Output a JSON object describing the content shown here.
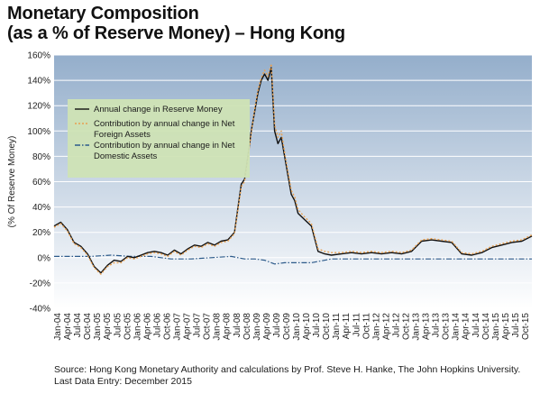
{
  "title_lines": [
    "Monetary Composition",
    "(as a % of Reserve Money) – Hong Kong"
  ],
  "source_lines": [
    "Source: Hong Kong Monetary Authority and calculations by Prof. Steve H. Hanke, The John Hopkins University.",
    "Last Data Entry: December 2015"
  ],
  "colors": {
    "plot_top": "#94aecb",
    "plot_bottom": "#ffffff",
    "grid": "#ffffff",
    "legend_bg": "#cfe3b5",
    "series_1": "#111111",
    "series_2": "#e8a050",
    "series_3": "#2c5a8a"
  },
  "chart_data": {
    "type": "line",
    "title": "Monetary Composition (as a % of Reserve Money) – Hong Kong",
    "xlabel": "",
    "ylabel": "(% Of Reserve Money)",
    "ylim": [
      -40,
      160
    ],
    "yticks": [
      -40,
      -20,
      0,
      20,
      40,
      60,
      80,
      100,
      120,
      140,
      160
    ],
    "ytick_labels": [
      "-40%",
      "-20%",
      "0%",
      "20%",
      "40%",
      "60%",
      "80%",
      "100%",
      "120%",
      "140%",
      "160%"
    ],
    "x_range": [
      "2004-01",
      "2015-12"
    ],
    "grid": true,
    "legend_position": "top-left",
    "categories": [
      "Jan-04",
      "Apr-04",
      "Jul-04",
      "Oct-04",
      "Jan-05",
      "Apr-05",
      "Jul-05",
      "Oct-05",
      "Jan-06",
      "Apr-06",
      "Jul-06",
      "Oct-06",
      "Jan-07",
      "Apr-07",
      "Jul-07",
      "Oct-07",
      "Jan-08",
      "Apr-08",
      "Jul-08",
      "Oct-08",
      "Jan-09",
      "Apr-09",
      "Jul-09",
      "Oct-09",
      "Jan-10",
      "Apr-10",
      "Jul-10",
      "Oct-10",
      "Jan-11",
      "Apr-11",
      "Jul-11",
      "Oct-11",
      "Jan-12",
      "Apr-12",
      "Jul-12",
      "Oct-12",
      "Jan-13",
      "Apr-13",
      "Jul-13",
      "Oct-13",
      "Jan-14",
      "Apr-14",
      "Jul-14",
      "Oct-14",
      "Jan-15",
      "Apr-15",
      "Jul-15",
      "Oct-15"
    ],
    "series": [
      {
        "name": "Annual change in Reserve Money",
        "style": "solid",
        "x": [
          "2004-01",
          "2004-03",
          "2004-05",
          "2004-07",
          "2004-09",
          "2004-11",
          "2005-01",
          "2005-03",
          "2005-05",
          "2005-07",
          "2005-09",
          "2005-11",
          "2006-01",
          "2006-03",
          "2006-05",
          "2006-07",
          "2006-09",
          "2006-11",
          "2007-01",
          "2007-03",
          "2007-05",
          "2007-07",
          "2007-09",
          "2007-11",
          "2008-01",
          "2008-03",
          "2008-05",
          "2008-07",
          "2008-09",
          "2008-10",
          "2008-11",
          "2008-12",
          "2009-01",
          "2009-02",
          "2009-03",
          "2009-04",
          "2009-05",
          "2009-06",
          "2009-07",
          "2009-08",
          "2009-09",
          "2009-10",
          "2009-11",
          "2009-12",
          "2010-01",
          "2010-02",
          "2010-04",
          "2010-06",
          "2010-08",
          "2010-10",
          "2010-12",
          "2011-03",
          "2011-06",
          "2011-09",
          "2011-12",
          "2012-03",
          "2012-06",
          "2012-09",
          "2012-12",
          "2013-03",
          "2013-06",
          "2013-09",
          "2013-12",
          "2014-03",
          "2014-06",
          "2014-09",
          "2014-12",
          "2015-03",
          "2015-06",
          "2015-09",
          "2015-12"
        ],
        "y": [
          25,
          28,
          22,
          12,
          9,
          3,
          -7,
          -12,
          -6,
          -2,
          -3,
          1,
          0,
          2,
          4,
          5,
          4,
          2,
          6,
          3,
          7,
          10,
          9,
          12,
          10,
          13,
          14,
          20,
          58,
          62,
          80,
          100,
          115,
          130,
          140,
          145,
          140,
          150,
          100,
          90,
          95,
          80,
          65,
          50,
          45,
          35,
          30,
          25,
          5,
          3,
          2,
          3,
          4,
          3,
          4,
          3,
          4,
          3,
          5,
          13,
          14,
          13,
          12,
          3,
          2,
          4,
          8,
          10,
          12,
          13,
          17
        ]
      },
      {
        "name": "Contribution by annual change in Net Foreign Assets",
        "style": "dotted",
        "x": [
          "2004-01",
          "2004-03",
          "2004-05",
          "2004-07",
          "2004-09",
          "2004-11",
          "2005-01",
          "2005-03",
          "2005-05",
          "2005-07",
          "2005-09",
          "2005-11",
          "2006-01",
          "2006-03",
          "2006-05",
          "2006-07",
          "2006-09",
          "2006-11",
          "2007-01",
          "2007-03",
          "2007-05",
          "2007-07",
          "2007-09",
          "2007-11",
          "2008-01",
          "2008-03",
          "2008-05",
          "2008-07",
          "2008-09",
          "2008-10",
          "2008-11",
          "2008-12",
          "2009-01",
          "2009-02",
          "2009-03",
          "2009-04",
          "2009-05",
          "2009-06",
          "2009-07",
          "2009-08",
          "2009-09",
          "2009-10",
          "2009-11",
          "2009-12",
          "2010-01",
          "2010-02",
          "2010-04",
          "2010-06",
          "2010-08",
          "2010-10",
          "2010-12",
          "2011-03",
          "2011-06",
          "2011-09",
          "2011-12",
          "2012-03",
          "2012-06",
          "2012-09",
          "2012-12",
          "2013-03",
          "2013-06",
          "2013-09",
          "2013-12",
          "2014-03",
          "2014-06",
          "2014-09",
          "2014-12",
          "2015-03",
          "2015-06",
          "2015-09",
          "2015-12"
        ],
        "y": [
          24,
          27,
          21,
          11,
          8,
          2,
          -8,
          -13,
          -7,
          -4,
          -4,
          0,
          -1,
          1,
          3,
          4,
          3,
          1,
          5,
          2,
          6,
          9,
          8,
          11,
          9,
          12,
          13,
          19,
          56,
          60,
          78,
          98,
          117,
          132,
          142,
          148,
          143,
          153,
          105,
          95,
          100,
          83,
          68,
          53,
          48,
          38,
          32,
          27,
          7,
          5,
          4,
          4,
          5,
          4,
          5,
          4,
          5,
          4,
          6,
          14,
          15,
          14,
          13,
          4,
          3,
          5,
          9,
          11,
          13,
          14,
          18
        ]
      },
      {
        "name": "Contribution by annual change in Net Domestic Assets",
        "style": "dash-dot",
        "x": [
          "2004-01",
          "2004-06",
          "2004-12",
          "2005-06",
          "2005-12",
          "2006-06",
          "2006-12",
          "2007-06",
          "2007-12",
          "2008-06",
          "2008-10",
          "2009-01",
          "2009-04",
          "2009-07",
          "2009-10",
          "2010-01",
          "2010-06",
          "2010-12",
          "2011-06",
          "2011-12",
          "2012-06",
          "2012-12",
          "2013-06",
          "2013-12",
          "2014-06",
          "2014-12",
          "2015-06",
          "2015-12"
        ],
        "y": [
          1,
          1,
          1,
          2,
          1,
          1,
          -1,
          -1,
          0,
          1,
          -1,
          -1,
          -2,
          -5,
          -4,
          -4,
          -4,
          -1,
          -1,
          -1,
          -1,
          -1,
          -1,
          -1,
          -1,
          -1,
          -1,
          -1
        ]
      }
    ]
  }
}
